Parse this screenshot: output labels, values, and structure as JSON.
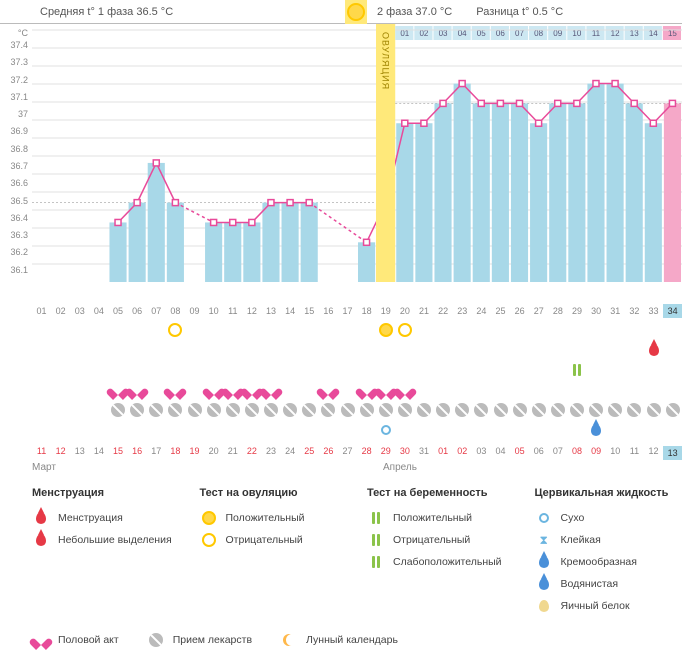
{
  "header": {
    "phase1_avg": "Средняя t° 1 фаза 36.5 °C",
    "phase2_avg": "2 фаза 37.0 °C",
    "diff": "Разница t° 0.5 °C"
  },
  "chart": {
    "type": "line+bar",
    "ylabel": "°C",
    "ylim": [
      36.1,
      37.4
    ],
    "ytick_step": 0.1,
    "yticks": [
      "37.4",
      "37.3",
      "37.2",
      "37.1",
      "37",
      "36.9",
      "36.8",
      "36.7",
      "36.6",
      "36.5",
      "36.4",
      "36.3",
      "36.2",
      "36.1"
    ],
    "n_days": 34,
    "ovulation_col": 19,
    "ovulation_label": "ОВУЛЯЦИЯ",
    "phase1_mean_y": 36.5,
    "phase2_mean_y": 37.0,
    "bar_color": "#a8d8e8",
    "last_bar_color": "#f5a8c8",
    "line_color": "#e84a9a",
    "background_color": "#ffffff",
    "grid_color": "#e0e0e0",
    "ovu_band_color": "#ffe97a",
    "points": [
      {
        "d": 5,
        "t": 36.4
      },
      {
        "d": 6,
        "t": 36.5
      },
      {
        "d": 7,
        "t": 36.7
      },
      {
        "d": 8,
        "t": 36.5,
        "dashed_after": true
      },
      {
        "d": 10,
        "t": 36.4
      },
      {
        "d": 11,
        "t": 36.4
      },
      {
        "d": 12,
        "t": 36.4
      },
      {
        "d": 13,
        "t": 36.5
      },
      {
        "d": 14,
        "t": 36.5
      },
      {
        "d": 15,
        "t": 36.5,
        "dashed_after": true
      },
      {
        "d": 18,
        "t": 36.3
      },
      {
        "d": 19,
        "t": 36.5
      },
      {
        "d": 20,
        "t": 36.9
      },
      {
        "d": 21,
        "t": 36.9
      },
      {
        "d": 22,
        "t": 37.0
      },
      {
        "d": 23,
        "t": 37.1
      },
      {
        "d": 24,
        "t": 37.0
      },
      {
        "d": 25,
        "t": 37.0
      },
      {
        "d": 26,
        "t": 37.0
      },
      {
        "d": 27,
        "t": 36.9
      },
      {
        "d": 28,
        "t": 37.0
      },
      {
        "d": 29,
        "t": 37.0
      },
      {
        "d": 30,
        "t": 37.1
      },
      {
        "d": 31,
        "t": 37.1
      },
      {
        "d": 32,
        "t": 37.0
      },
      {
        "d": 33,
        "t": 36.9
      },
      {
        "d": 34,
        "t": 37.0
      }
    ],
    "xaxis_days": [
      "01",
      "02",
      "03",
      "04",
      "05",
      "06",
      "07",
      "08",
      "09",
      "10",
      "11",
      "12",
      "13",
      "14",
      "15",
      "16",
      "17",
      "18",
      "19",
      "20",
      "21",
      "22",
      "23",
      "24",
      "25",
      "26",
      "27",
      "28",
      "29",
      "30",
      "31",
      "32",
      "33",
      "34"
    ],
    "phase2_day_boxes": [
      "01",
      "02",
      "03",
      "04",
      "05",
      "06",
      "07",
      "08",
      "09",
      "10",
      "11",
      "12",
      "13",
      "14",
      "15"
    ]
  },
  "tracks": {
    "ovu_test": {
      "8": "open",
      "19": "fill",
      "20": "open"
    },
    "preg_test": {
      "29": "pos"
    },
    "menstruation": {
      "33": "red"
    },
    "intercourse": {
      "5": true,
      "6": true,
      "8": true,
      "10": true,
      "11": true,
      "12": true,
      "13": true,
      "16": true,
      "18": true,
      "19": true,
      "20": true
    },
    "meds": {
      "5": true,
      "6": true,
      "7": true,
      "8": true,
      "9": true,
      "10": true,
      "11": true,
      "12": true,
      "13": true,
      "14": true,
      "15": true,
      "16": true,
      "17": true,
      "18": true,
      "19": true,
      "20": true,
      "21": true,
      "22": true,
      "23": true,
      "24": true,
      "25": true,
      "26": true,
      "27": true,
      "28": true,
      "29": true,
      "30": true,
      "31": true,
      "32": true,
      "33": true,
      "34": true
    },
    "fluid": {
      "19": "blue",
      "30": "blue-drop"
    }
  },
  "dates": {
    "cells": [
      {
        "n": "11",
        "c": "red"
      },
      {
        "n": "12",
        "c": "red"
      },
      {
        "n": "13",
        "c": "grey"
      },
      {
        "n": "14",
        "c": "grey"
      },
      {
        "n": "15",
        "c": "red"
      },
      {
        "n": "16",
        "c": "red"
      },
      {
        "n": "17",
        "c": "grey"
      },
      {
        "n": "18",
        "c": "red"
      },
      {
        "n": "19",
        "c": "red"
      },
      {
        "n": "20",
        "c": "grey"
      },
      {
        "n": "21",
        "c": "grey"
      },
      {
        "n": "22",
        "c": "red"
      },
      {
        "n": "23",
        "c": "grey"
      },
      {
        "n": "24",
        "c": "grey"
      },
      {
        "n": "25",
        "c": "red"
      },
      {
        "n": "26",
        "c": "red"
      },
      {
        "n": "27",
        "c": "grey"
      },
      {
        "n": "28",
        "c": "red"
      },
      {
        "n": "29",
        "c": "red"
      },
      {
        "n": "30",
        "c": "red"
      },
      {
        "n": "31",
        "c": "grey"
      },
      {
        "n": "01",
        "c": "red"
      },
      {
        "n": "02",
        "c": "red"
      },
      {
        "n": "03",
        "c": "grey"
      },
      {
        "n": "04",
        "c": "grey"
      },
      {
        "n": "05",
        "c": "red"
      },
      {
        "n": "06",
        "c": "grey"
      },
      {
        "n": "07",
        "c": "grey"
      },
      {
        "n": "08",
        "c": "red"
      },
      {
        "n": "09",
        "c": "red"
      },
      {
        "n": "10",
        "c": "grey"
      },
      {
        "n": "11",
        "c": "grey"
      },
      {
        "n": "12",
        "c": "grey"
      },
      {
        "n": "13",
        "c": "hi"
      }
    ],
    "month1": "Март",
    "month2": "Апрель"
  },
  "legend": {
    "col1": {
      "title": "Менструация",
      "items": [
        {
          "icon": "drop-red",
          "label": "Менструация"
        },
        {
          "icon": "drop-red",
          "label": "Небольшие выделения"
        }
      ]
    },
    "col2": {
      "title": "Тест на овуляцию",
      "items": [
        {
          "icon": "circ-yellow-f",
          "label": "Положительный"
        },
        {
          "icon": "circ-yellow-o",
          "label": "Отрицательный"
        }
      ]
    },
    "col3": {
      "title": "Тест на беременность",
      "items": [
        {
          "icon": "bars-green",
          "label": "Положительный"
        },
        {
          "icon": "bars-green",
          "label": "Отрицательный"
        },
        {
          "icon": "bars-green",
          "label": "Слабоположительный"
        }
      ]
    },
    "col4": {
      "title": "Цервикальная жидкость",
      "items": [
        {
          "icon": "circ-blue-o",
          "label": "Сухо"
        },
        {
          "icon": "hourglass",
          "label": "Клейкая"
        },
        {
          "icon": "drop-blue",
          "label": "Кремообразная"
        },
        {
          "icon": "drop-blue",
          "label": "Водянистая"
        },
        {
          "icon": "egg",
          "label": "Яичный белок"
        }
      ]
    },
    "row2": [
      {
        "icon": "heart",
        "label": "Половой акт"
      },
      {
        "icon": "pill",
        "label": "Прием лекарств"
      },
      {
        "icon": "moon",
        "label": "Лунный календарь"
      }
    ]
  }
}
